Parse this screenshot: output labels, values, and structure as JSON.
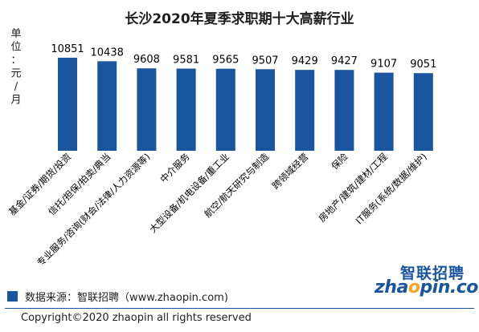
{
  "chart_data": {
    "type": "bar",
    "title": "长沙2020年夏季求职期十大高薪行业",
    "unit_label": "单位：元/月",
    "categories": [
      "基金/证券/期货/投资",
      "信托/担保/拍卖/典当",
      "专业服务/咨询(财会/法律/人力资源等)",
      "中介服务",
      "大型设备/机电设备/重工业",
      "航空/航天研究与制造",
      "跨领域经营",
      "保险",
      "房地产/建筑/建材/工程",
      "IT服务(系统/数据/维护)"
    ],
    "values": [
      10851,
      10438,
      9608,
      9581,
      9565,
      9507,
      9429,
      9427,
      9107,
      9051
    ],
    "ylim": [
      0,
      11500
    ],
    "grid": false,
    "bar_color": "#1a56a0"
  },
  "legend": {
    "text": "数据来源：智联招聘（www.zhaopin.com)"
  },
  "footer": {
    "copyright": "Copyright©2020 zhaopin all rights reserved"
  },
  "logo": {
    "cn": "智联招聘",
    "en_pre": "zha",
    "en_dot": "o",
    "en_post": "pin.com"
  },
  "colors": {
    "bar": "#1a56a0",
    "accent": "#f5a623"
  }
}
